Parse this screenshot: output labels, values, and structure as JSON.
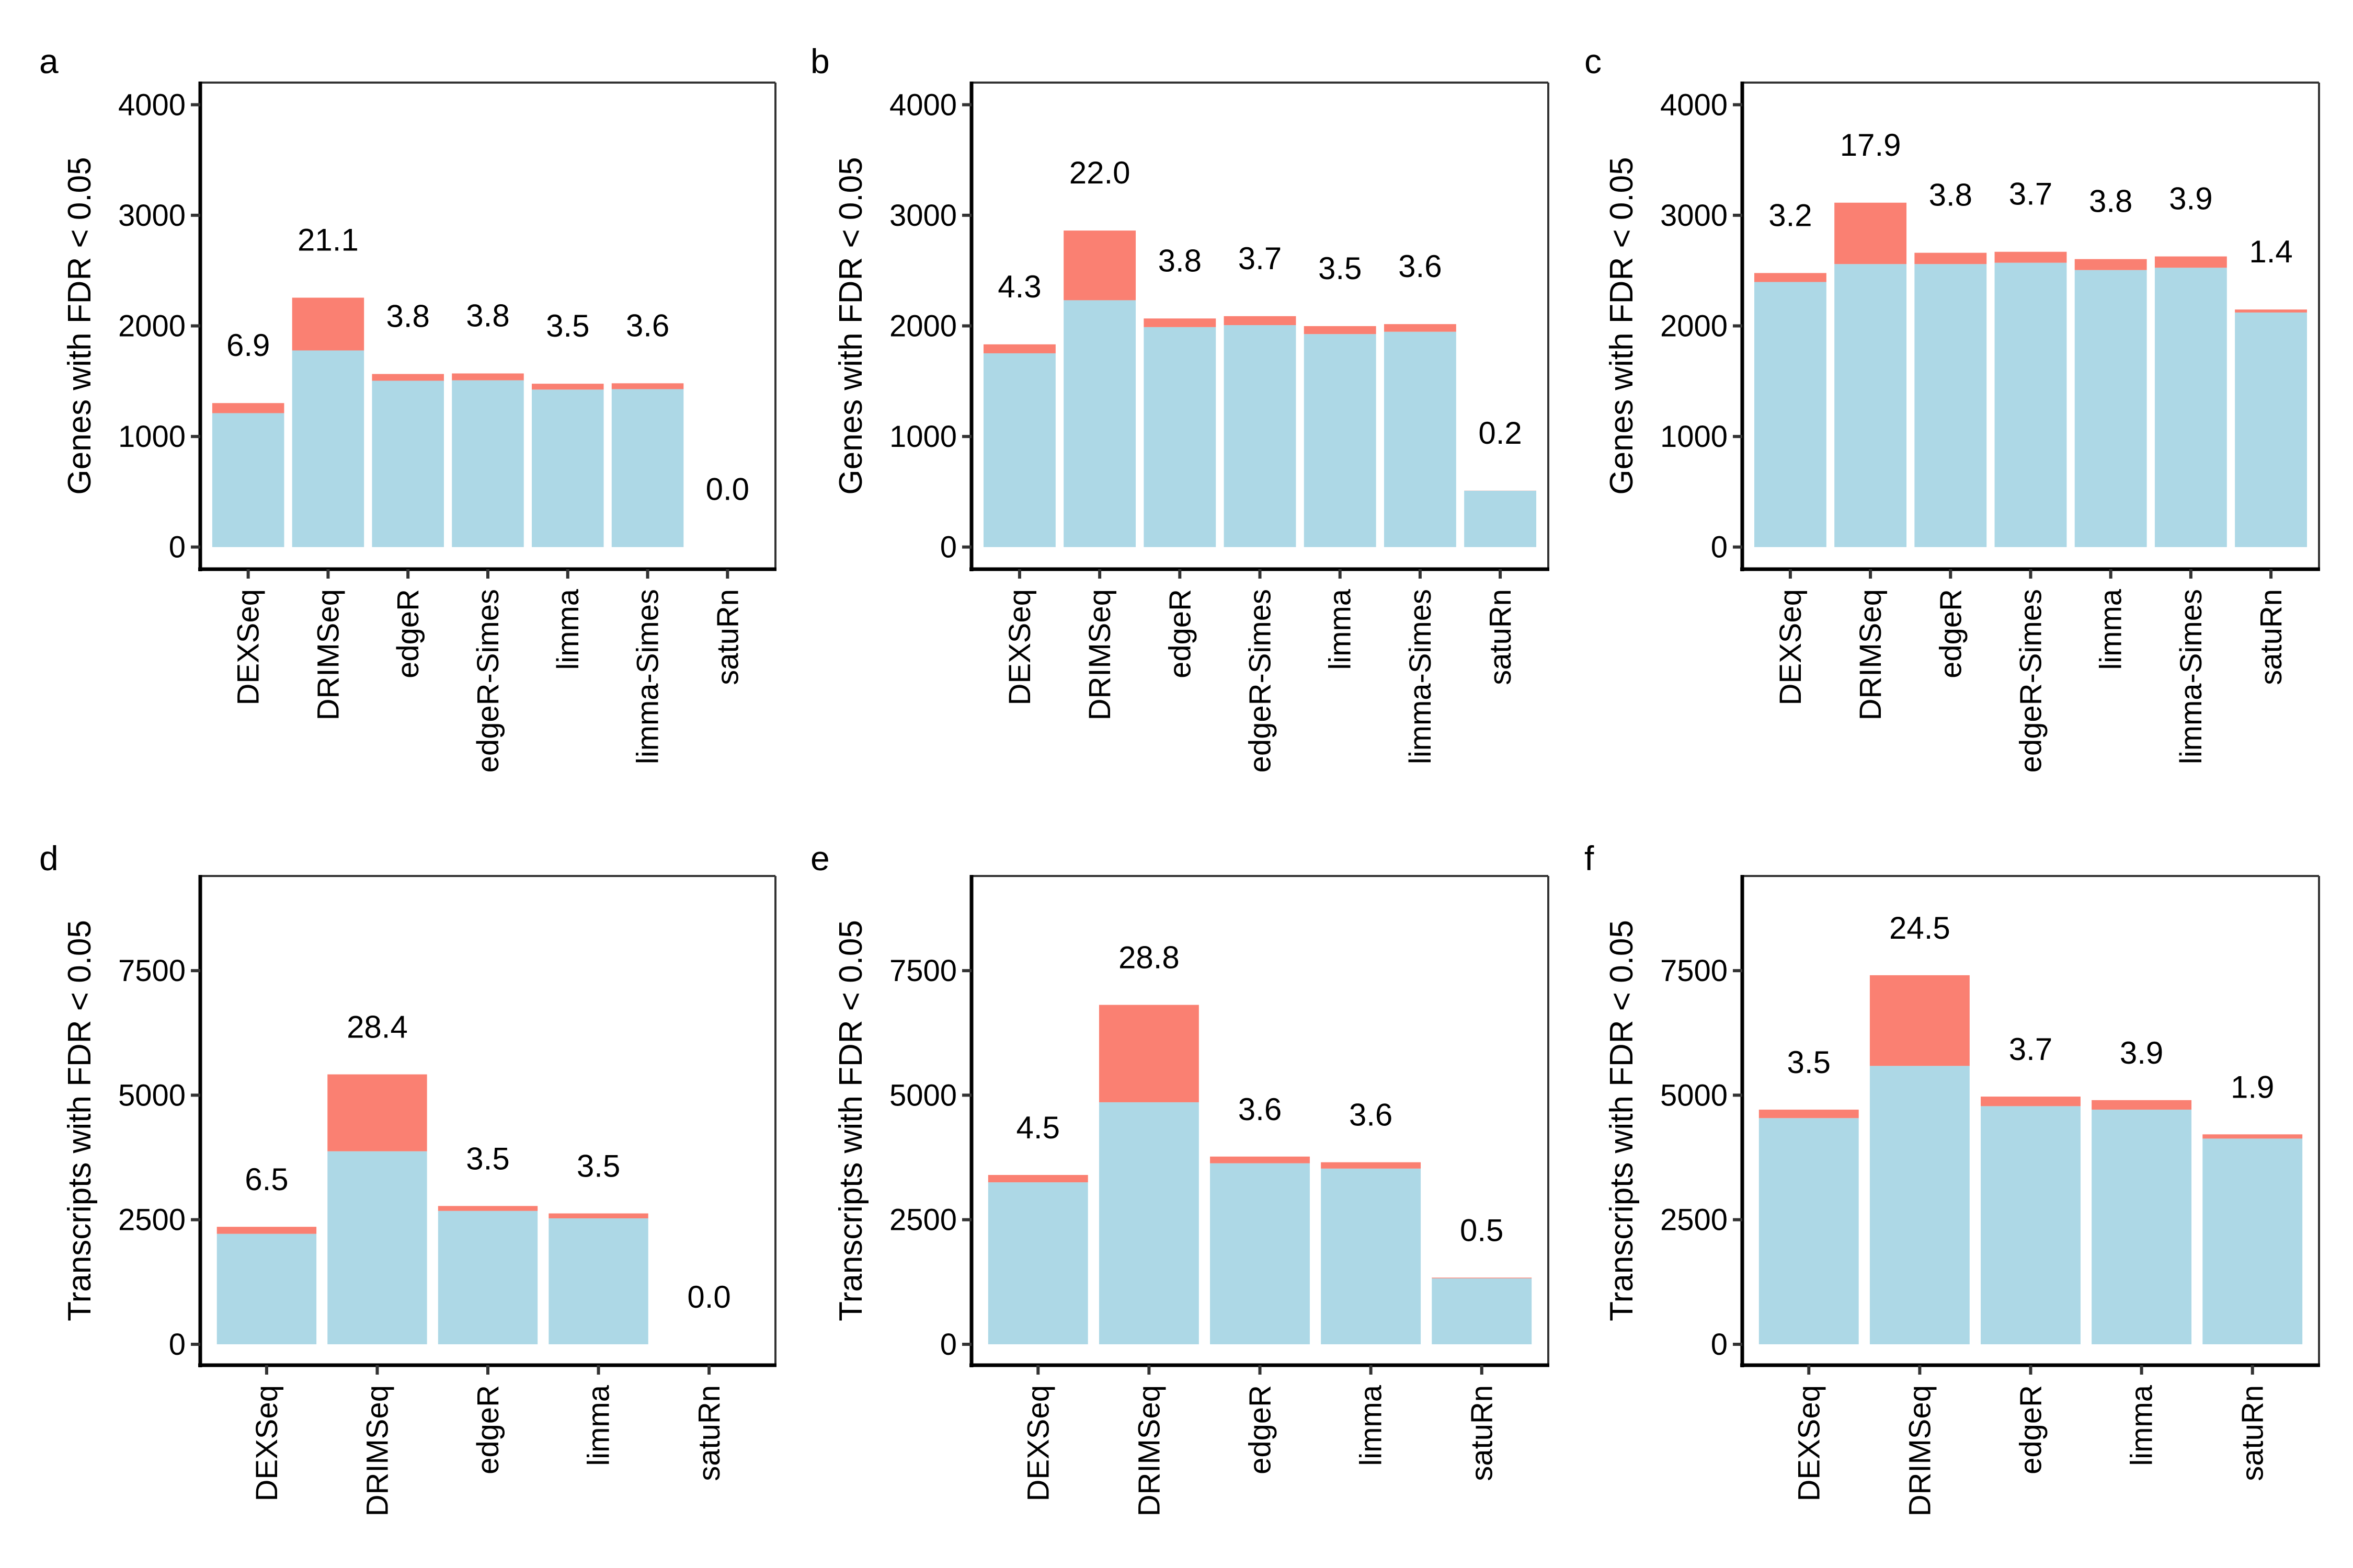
{
  "colors": {
    "base": "#ADD8E6",
    "extra": "#FA8072",
    "axis": "#000000",
    "tick": "#333333"
  },
  "chart_data": [
    {
      "panel": "a",
      "type": "bar",
      "stacked": true,
      "ylabel": "Genes with FDR < 0.05",
      "xlabel": "",
      "ylim": [
        -200,
        4200
      ],
      "yticks": [
        0,
        1000,
        2000,
        3000,
        4000
      ],
      "categories": [
        "DEXSeq",
        "DRIMSeq",
        "edgeR",
        "edgeR-Simes",
        "limma",
        "limma-Simes",
        "satuRn"
      ],
      "series": [
        {
          "name": "base",
          "values": [
            1211,
            1778,
            1504,
            1508,
            1424,
            1428,
            0
          ]
        },
        {
          "name": "extra",
          "values": [
            91,
            477,
            61,
            62,
            53,
            53,
            0
          ]
        }
      ],
      "labels": [
        "6.9",
        "21.1",
        "3.8",
        "3.8",
        "3.5",
        "3.6",
        "0.0"
      ]
    },
    {
      "panel": "b",
      "type": "bar",
      "stacked": true,
      "ylabel": "Genes with FDR < 0.05",
      "xlabel": "",
      "ylim": [
        -200,
        4200
      ],
      "yticks": [
        0,
        1000,
        2000,
        3000,
        4000
      ],
      "categories": [
        "DEXSeq",
        "DRIMSeq",
        "edgeR",
        "edgeR-Simes",
        "limma",
        "limma-Simes",
        "satuRn"
      ],
      "series": [
        {
          "name": "base",
          "values": [
            1752,
            2232,
            1989,
            2007,
            1926,
            1947,
            509
          ]
        },
        {
          "name": "extra",
          "values": [
            81,
            630,
            78,
            81,
            72,
            69,
            1
          ]
        }
      ],
      "labels": [
        "4.3",
        "22.0",
        "3.8",
        "3.7",
        "3.5",
        "3.6",
        "0.2"
      ]
    },
    {
      "panel": "c",
      "type": "bar",
      "stacked": true,
      "ylabel": "Genes with FDR < 0.05",
      "xlabel": "",
      "ylim": [
        -200,
        4200
      ],
      "yticks": [
        0,
        1000,
        2000,
        3000,
        4000
      ],
      "categories": [
        "DEXSeq",
        "DRIMSeq",
        "edgeR",
        "edgeR-Simes",
        "limma",
        "limma-Simes",
        "satuRn"
      ],
      "series": [
        {
          "name": "base",
          "values": [
            2397,
            2559,
            2559,
            2571,
            2505,
            2526,
            2121
          ]
        },
        {
          "name": "extra",
          "values": [
            81,
            555,
            102,
            99,
            99,
            102,
            27
          ]
        }
      ],
      "labels": [
        "3.2",
        "17.9",
        "3.8",
        "3.7",
        "3.8",
        "3.9",
        "1.4"
      ]
    },
    {
      "panel": "d",
      "type": "bar",
      "stacked": true,
      "ylabel": "Transcripts with FDR < 0.05",
      "xlabel": "",
      "ylim": [
        -420,
        9400
      ],
      "yticks": [
        0,
        2500,
        5000,
        7500
      ],
      "categories": [
        "DEXSeq",
        "DRIMSeq",
        "edgeR",
        "limma",
        "satuRn"
      ],
      "series": [
        {
          "name": "base",
          "values": [
            2217,
            3874,
            2677,
            2528,
            0
          ]
        },
        {
          "name": "extra",
          "values": [
            141,
            1544,
            99,
            99,
            0
          ]
        }
      ],
      "labels": [
        "6.5",
        "28.4",
        "3.5",
        "3.5",
        "0.0"
      ]
    },
    {
      "panel": "e",
      "type": "bar",
      "stacked": true,
      "ylabel": "Transcripts with FDR < 0.05",
      "xlabel": "",
      "ylim": [
        -420,
        9400
      ],
      "yticks": [
        0,
        2500,
        5000,
        7500
      ],
      "categories": [
        "DEXSeq",
        "DRIMSeq",
        "edgeR",
        "limma",
        "satuRn"
      ],
      "series": [
        {
          "name": "base",
          "values": [
            3251,
            4858,
            3633,
            3527,
            1324
          ]
        },
        {
          "name": "extra",
          "values": [
            148,
            1955,
            135,
            127,
            14
          ]
        }
      ],
      "labels": [
        "4.5",
        "28.8",
        "3.6",
        "3.6",
        "0.5"
      ]
    },
    {
      "panel": "f",
      "type": "bar",
      "stacked": true,
      "ylabel": "Transcripts with FDR < 0.05",
      "xlabel": "",
      "ylim": [
        -420,
        9400
      ],
      "yticks": [
        0,
        2500,
        5000,
        7500
      ],
      "categories": [
        "DEXSeq",
        "DRIMSeq",
        "edgeR",
        "limma",
        "satuRn"
      ],
      "series": [
        {
          "name": "base",
          "values": [
            4540,
            5588,
            4780,
            4710,
            4129
          ]
        },
        {
          "name": "extra",
          "values": [
            170,
            1820,
            192,
            191,
            85
          ]
        }
      ],
      "labels": [
        "3.5",
        "24.5",
        "3.7",
        "3.9",
        "1.9"
      ]
    }
  ]
}
